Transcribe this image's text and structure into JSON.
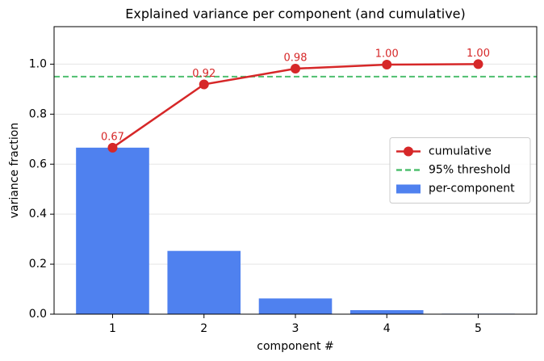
{
  "chart_data": {
    "type": "bar",
    "title": "Explained variance per component (and cumulative)",
    "x_label": "component #",
    "y_label": "variance fraction",
    "x": [
      1,
      2,
      3,
      4,
      5
    ],
    "series": [
      {
        "name": "per-component",
        "type": "bar",
        "color": "#4f81ef",
        "values": [
          0.666,
          0.253,
          0.063,
          0.016,
          0.002
        ]
      },
      {
        "name": "cumulative",
        "type": "line",
        "color": "#d62728",
        "values": [
          0.666,
          0.919,
          0.982,
          0.998,
          1.0
        ],
        "value_labels": [
          "0.67",
          "0.92",
          "0.98",
          "1.00",
          "1.00"
        ]
      }
    ],
    "threshold": {
      "name": "95% threshold",
      "value": 0.95,
      "color": "#4fbf6f"
    },
    "xlim": [
      0.36,
      5.64
    ],
    "xticks": [
      1,
      2,
      3,
      4,
      5
    ],
    "ylim": [
      0,
      1.15
    ],
    "yticks": [
      {
        "value": 0,
        "label": "0.0"
      },
      0.2,
      0.4,
      0.6,
      0.8,
      {
        "value": 1,
        "label": "1.0"
      }
    ],
    "grid": true,
    "legend": "center right"
  }
}
